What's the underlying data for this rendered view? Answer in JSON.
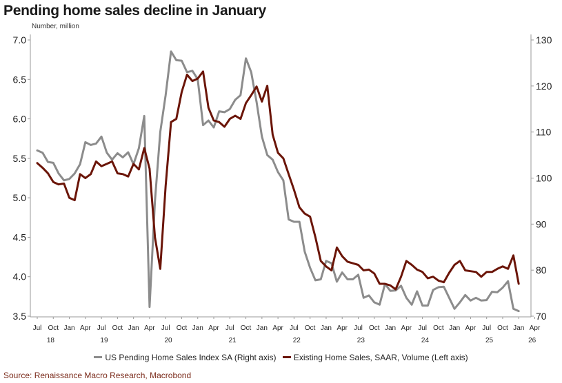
{
  "title": "Pending home sales decline in January",
  "units_label": "Number, million",
  "source": "Source: Renaissance Macro Research, Macrobond",
  "chart_data": {
    "type": "line",
    "title": "Pending home sales decline in January",
    "left_axis": {
      "label": "Number, million",
      "range": [
        3.5,
        7.0
      ],
      "ticks": [
        "3.5",
        "4.0",
        "4.5",
        "5.0",
        "5.5",
        "6.0",
        "6.5",
        "7.0"
      ]
    },
    "right_axis": {
      "range": [
        70,
        130
      ],
      "ticks": [
        "70",
        "80",
        "90",
        "100",
        "110",
        "120",
        "130"
      ]
    },
    "x_range": [
      0,
      91
    ],
    "x_ticks": [
      {
        "i": 0,
        "label": "Jul"
      },
      {
        "i": 3,
        "label": "Oct"
      },
      {
        "i": 6,
        "label": "Jan"
      },
      {
        "i": 9,
        "label": "Apr"
      },
      {
        "i": 12,
        "label": "Jul"
      },
      {
        "i": 15,
        "label": "Oct"
      },
      {
        "i": 18,
        "label": "Jan"
      },
      {
        "i": 21,
        "label": "Apr"
      },
      {
        "i": 24,
        "label": "Jul"
      },
      {
        "i": 27,
        "label": "Oct"
      },
      {
        "i": 30,
        "label": "Jan"
      },
      {
        "i": 33,
        "label": "Apr"
      },
      {
        "i": 36,
        "label": "Jul"
      },
      {
        "i": 39,
        "label": "Oct"
      },
      {
        "i": 42,
        "label": "Jan"
      },
      {
        "i": 45,
        "label": "Apr"
      },
      {
        "i": 48,
        "label": "Jul"
      },
      {
        "i": 51,
        "label": "Oct"
      },
      {
        "i": 54,
        "label": "Jan"
      },
      {
        "i": 57,
        "label": "Apr"
      },
      {
        "i": 60,
        "label": "Jul"
      },
      {
        "i": 63,
        "label": "Oct"
      },
      {
        "i": 66,
        "label": "Jan"
      },
      {
        "i": 69,
        "label": "Apr"
      },
      {
        "i": 72,
        "label": "Jul"
      },
      {
        "i": 75,
        "label": "Oct"
      },
      {
        "i": 78,
        "label": "Jan"
      },
      {
        "i": 81,
        "label": "Apr"
      },
      {
        "i": 84,
        "label": "Jul"
      },
      {
        "i": 87,
        "label": "Oct"
      },
      {
        "i": 90,
        "label": "Jan"
      },
      {
        "i": 93,
        "label": "Apr"
      }
    ],
    "year_labels": [
      {
        "i": 2.5,
        "label": "18"
      },
      {
        "i": 12.5,
        "label": "19"
      },
      {
        "i": 24.5,
        "label": "20"
      },
      {
        "i": 36.5,
        "label": "21"
      },
      {
        "i": 48.5,
        "label": "22"
      },
      {
        "i": 60.5,
        "label": "23"
      },
      {
        "i": 72.5,
        "label": "24"
      },
      {
        "i": 84.5,
        "label": "25"
      },
      {
        "i": 92.5,
        "label": "26"
      }
    ],
    "series": [
      {
        "name": "US Pending Home Sales Index SA (Right axis)",
        "axis": "right",
        "color": "#8c8c8c",
        "values": [
          106,
          105.5,
          103.5,
          103.3,
          101,
          99.5,
          99.8,
          101,
          103,
          107.8,
          107.2,
          107.5,
          109,
          105.5,
          104,
          105.4,
          104.5,
          105.6,
          103,
          106.5,
          113.5,
          72,
          95,
          110,
          118,
          127.5,
          125.6,
          125.5,
          123,
          123.3,
          121.5,
          111.5,
          112.5,
          111,
          114.5,
          114.3,
          115,
          117,
          118,
          126,
          123,
          116.5,
          109,
          105,
          104,
          101.3,
          99.5,
          91,
          90.5,
          90.5,
          84,
          80.5,
          77.8,
          78,
          82,
          81.5,
          77.5,
          79.5,
          78,
          78,
          79,
          74,
          74.5,
          73,
          72.5,
          77,
          75.5,
          75.6,
          76.6,
          74,
          72.5,
          75.4,
          72.3,
          72.3,
          75.7,
          76.3,
          76.4,
          74,
          71.6,
          73,
          74.6,
          73.4,
          74,
          73.4,
          73.5,
          75.3,
          75.2,
          76.2,
          77.6,
          71.6,
          71.1
        ]
      },
      {
        "name": "Existing Home Sales, SAAR, Volume (Left axis)",
        "axis": "left",
        "color": "#6b1508",
        "values": [
          5.44,
          5.38,
          5.31,
          5.2,
          5.17,
          5.18,
          5.0,
          4.97,
          5.3,
          5.25,
          5.3,
          5.46,
          5.4,
          5.43,
          5.46,
          5.31,
          5.3,
          5.27,
          5.43,
          5.36,
          5.63,
          5.37,
          4.5,
          4.1,
          5.15,
          5.96,
          6.0,
          6.34,
          6.56,
          6.48,
          6.51,
          6.6,
          6.14,
          5.98,
          5.96,
          5.9,
          6.0,
          6.04,
          6.0,
          6.2,
          6.3,
          6.41,
          6.22,
          6.42,
          5.8,
          5.57,
          5.5,
          5.3,
          5.1,
          4.88,
          4.8,
          4.76,
          4.5,
          4.2,
          4.13,
          4.08,
          4.37,
          4.26,
          4.19,
          4.17,
          4.15,
          4.08,
          4.09,
          4.04,
          3.91,
          3.91,
          3.89,
          3.84,
          4.0,
          4.2,
          4.15,
          4.09,
          4.06,
          3.98,
          4.0,
          3.95,
          3.93,
          4.05,
          4.15,
          4.2,
          4.08,
          4.07,
          4.06,
          4.0,
          4.06,
          4.06,
          4.1,
          4.13,
          4.1,
          4.27,
          3.91
        ]
      }
    ]
  }
}
